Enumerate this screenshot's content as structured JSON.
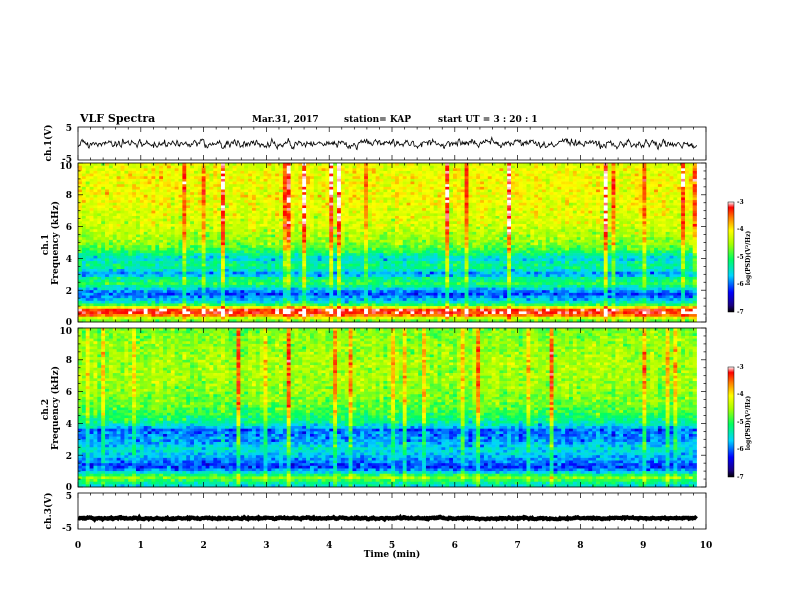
{
  "header": {
    "title": "VLF Spectra",
    "date": "Mar.31, 2017",
    "station": "station= KAP",
    "start": "start  UT =   3 : 20 : 1"
  },
  "chart_data": [
    {
      "type": "line",
      "panel": "ch1-waveform",
      "ylabel": "ch.1(V)",
      "ylim": [
        -5,
        5
      ],
      "yticks": [
        "5",
        "-5"
      ],
      "xlim": [
        0,
        10
      ],
      "trace_end_min": 9.85,
      "trace_mean_v": 0.0,
      "trace_amplitude_v": 1.5
    },
    {
      "type": "heatmap",
      "panel": "ch1-spectrogram",
      "ylabel": "ch.1\nFrequency (kHz)",
      "ylim": [
        0,
        10
      ],
      "yticks": [
        "0",
        "2",
        "4",
        "6",
        "8",
        "10"
      ],
      "xlim": [
        0,
        10
      ],
      "trace_end_min": 9.85,
      "colorbar": {
        "label": "log(PSD)(V²/Hz)",
        "range": [
          -7,
          -3
        ],
        "ticks": [
          "-3",
          "-4",
          "-5",
          "-6",
          "-7"
        ]
      },
      "profile": [
        {
          "f": 0.0,
          "v": -4.8
        },
        {
          "f": 0.2,
          "v": -4.5
        },
        {
          "f": 0.5,
          "v": -3.2
        },
        {
          "f": 0.8,
          "v": -3.3
        },
        {
          "f": 1.0,
          "v": -4.6
        },
        {
          "f": 1.2,
          "v": -5.4
        },
        {
          "f": 1.5,
          "v": -5.8
        },
        {
          "f": 1.8,
          "v": -6.1
        },
        {
          "f": 2.1,
          "v": -5.6
        },
        {
          "f": 2.4,
          "v": -5.0
        },
        {
          "f": 2.8,
          "v": -5.3
        },
        {
          "f": 3.0,
          "v": -5.9
        },
        {
          "f": 3.3,
          "v": -5.4
        },
        {
          "f": 3.6,
          "v": -5.2
        },
        {
          "f": 4.0,
          "v": -5.6
        },
        {
          "f": 4.5,
          "v": -4.9
        },
        {
          "f": 5.0,
          "v": -4.6
        },
        {
          "f": 6.0,
          "v": -4.3
        },
        {
          "f": 7.0,
          "v": -4.2
        },
        {
          "f": 8.0,
          "v": -4.1
        },
        {
          "f": 9.0,
          "v": -4.1
        },
        {
          "f": 10.0,
          "v": -4.2
        }
      ]
    },
    {
      "type": "heatmap",
      "panel": "ch2-spectrogram",
      "ylabel": "ch.2\nFrequency (kHz)",
      "ylim": [
        0,
        10
      ],
      "yticks": [
        "0",
        "2",
        "4",
        "6",
        "8",
        "10"
      ],
      "xlim": [
        0,
        10
      ],
      "trace_end_min": 9.85,
      "colorbar": {
        "label": "log(PSD)(V²/Hz)",
        "range": [
          -7,
          -3
        ],
        "ticks": [
          "-3",
          "-4",
          "-5",
          "-6",
          "-7"
        ]
      },
      "profile": [
        {
          "f": 0.0,
          "v": -5.6
        },
        {
          "f": 0.3,
          "v": -5.2
        },
        {
          "f": 0.6,
          "v": -4.6
        },
        {
          "f": 1.0,
          "v": -5.8
        },
        {
          "f": 1.3,
          "v": -6.2
        },
        {
          "f": 1.6,
          "v": -5.9
        },
        {
          "f": 2.0,
          "v": -5.7
        },
        {
          "f": 2.4,
          "v": -5.5
        },
        {
          "f": 2.8,
          "v": -5.8
        },
        {
          "f": 3.2,
          "v": -5.9
        },
        {
          "f": 3.6,
          "v": -6.0
        },
        {
          "f": 4.0,
          "v": -5.3
        },
        {
          "f": 4.5,
          "v": -5.0
        },
        {
          "f": 5.0,
          "v": -4.8
        },
        {
          "f": 6.0,
          "v": -4.6
        },
        {
          "f": 7.0,
          "v": -4.5
        },
        {
          "f": 8.0,
          "v": -4.5
        },
        {
          "f": 9.0,
          "v": -4.6
        },
        {
          "f": 10.0,
          "v": -4.7
        }
      ]
    },
    {
      "type": "line",
      "panel": "ch3-waveform",
      "ylabel": "ch.3(V)",
      "ylim": [
        -5,
        5
      ],
      "yticks": [
        "5",
        "-5"
      ],
      "xlim": [
        0,
        10
      ],
      "trace_end_min": 9.85,
      "trace_mean_v": -2.0,
      "trace_amplitude_v": 0.3
    }
  ],
  "xaxis": {
    "label": "Time (min)",
    "ticks": [
      "0",
      "1",
      "2",
      "3",
      "4",
      "5",
      "6",
      "7",
      "8",
      "9",
      "10"
    ]
  }
}
